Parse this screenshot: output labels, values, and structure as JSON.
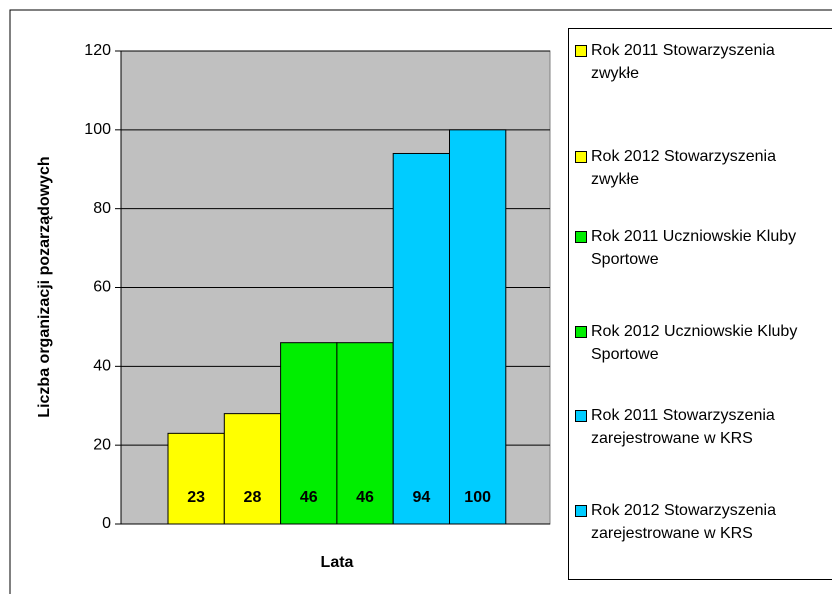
{
  "chart_data": {
    "type": "bar",
    "y_label": "Liczba organizacji pozarządowych",
    "x_label": "Lata",
    "ylim": [
      0,
      120
    ],
    "yticks": [
      0,
      20,
      40,
      60,
      80,
      100,
      120
    ],
    "grid": true,
    "legend": "right",
    "series": [
      {
        "name": "Rok 2011 Stowarzyszenia zwykłe",
        "color": "#ffff00",
        "values": [
          23
        ]
      },
      {
        "name": "Rok 2012 Stowarzyszenia zwykłe",
        "color": "#ffff00",
        "values": [
          28
        ]
      },
      {
        "name": "Rok 2011 Uczniowskie Kluby Sportowe",
        "color": "#00ee00",
        "values": [
          46
        ]
      },
      {
        "name": "Rok 2012 Uczniowskie Kluby Sportowe",
        "color": "#00ee00",
        "values": [
          46
        ]
      },
      {
        "name": "Rok 2011 Stowarzyszenia zarejestrowane w KRS",
        "color": "#00ccff",
        "values": [
          94
        ]
      },
      {
        "name": "Rok 2012 Stowarzyszenia zarejestrowane w KRS",
        "color": "#00ccff",
        "values": [
          100
        ]
      }
    ]
  }
}
